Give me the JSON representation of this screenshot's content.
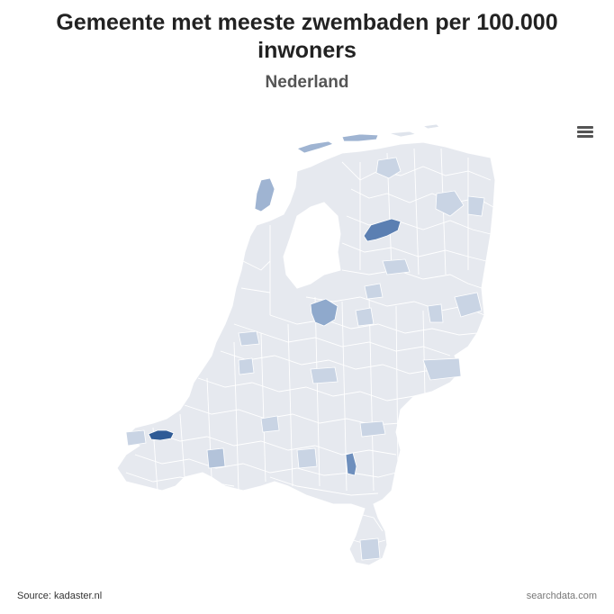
{
  "title": "Gemeente met meeste zwembaden per 100.000\ninwoners",
  "subtitle": "Nederland",
  "menu_icon": "hamburger-menu-icon",
  "footer": {
    "source": "Source: kadaster.nl",
    "credit": "searchdata.com"
  },
  "colors": {
    "base": "#e6e9ef",
    "light": "#c9d4e4",
    "medium": "#8fa9cc",
    "dark": "#5b7fb2",
    "darkest": "#2f5b96",
    "border": "#ffffff"
  }
}
